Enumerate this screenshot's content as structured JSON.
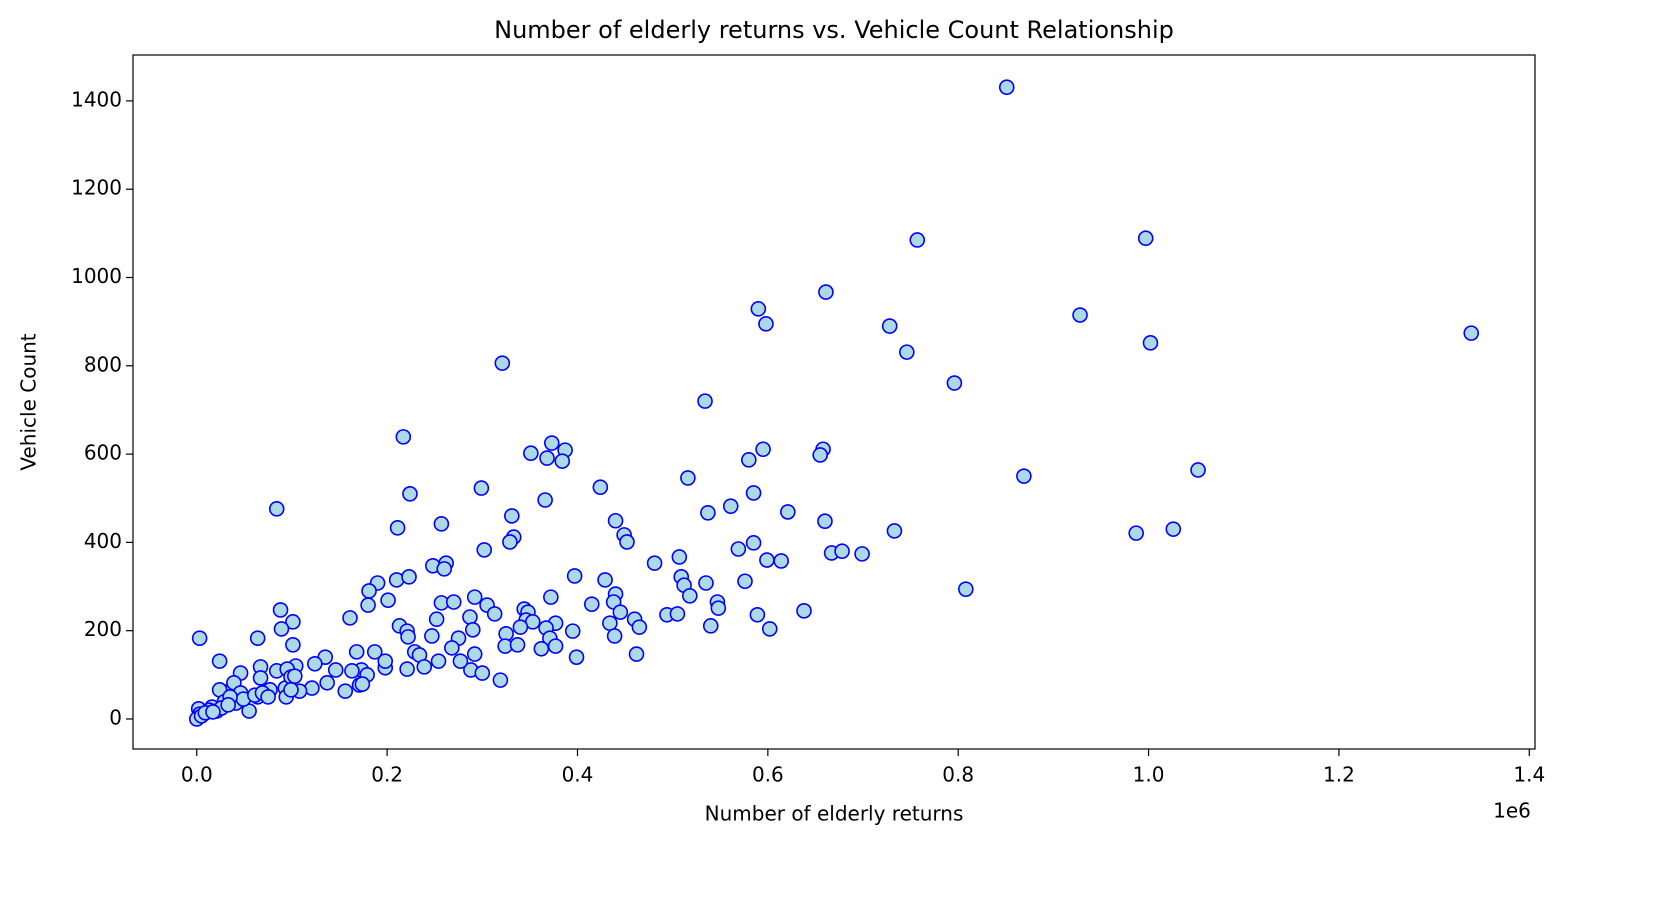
{
  "chart_data": {
    "type": "scatter",
    "title": "Number of elderly returns vs. Vehicle Count Relationship",
    "x_label": "Number of elderly returns",
    "y_label": "Vehicle Count",
    "x_offset_label": "1e6",
    "color": "#add8e6",
    "edge_color": "#0000ff",
    "xlim": [
      -67000,
      1406000
    ],
    "ylim": [
      -68,
      1504
    ],
    "xticks": [
      {
        "value": 0,
        "label": "0.0"
      },
      {
        "value": 200000,
        "label": "0.2"
      },
      {
        "value": 400000,
        "label": "0.4"
      },
      {
        "value": 600000,
        "label": "0.6"
      },
      {
        "value": 800000,
        "label": "0.8"
      },
      {
        "value": 1000000,
        "label": "1.0"
      },
      {
        "value": 1200000,
        "label": "1.2"
      },
      {
        "value": 1400000,
        "label": "1.4"
      }
    ],
    "yticks": [
      0,
      200,
      400,
      600,
      800,
      1000,
      1200,
      1400
    ],
    "x": [
      851000,
      757000,
      997000,
      661000,
      590000,
      598000,
      728000,
      928000,
      746000,
      1002000,
      1339000,
      796000,
      321000,
      534000,
      217000,
      373000,
      351000,
      368000,
      387000,
      384000,
      580000,
      595000,
      658000,
      655000,
      869000,
      1052000,
      224000,
      299000,
      424000,
      516000,
      84000,
      366000,
      561000,
      585000,
      537000,
      621000,
      211000,
      257000,
      331000,
      440000,
      660000,
      449000,
      452000,
      333000,
      329000,
      585000,
      569000,
      733000,
      987000,
      1026000,
      302000,
      667000,
      678000,
      699000,
      507000,
      599000,
      614000,
      481000,
      248000,
      262000,
      260000,
      509000,
      512000,
      397000,
      429000,
      535000,
      576000,
      190000,
      210000,
      223000,
      808000,
      518000,
      372000,
      292000,
      440000,
      181000,
      201000,
      257000,
      270000,
      305000,
      415000,
      438000,
      547000,
      548000,
      313000,
      344000,
      348000,
      88000,
      180000,
      445000,
      494000,
      505000,
      589000,
      638000,
      161000,
      252000,
      287000,
      346000,
      460000,
      377000,
      353000,
      340000,
      434000,
      465000,
      540000,
      602000,
      213000,
      101000,
      89000,
      221000,
      367000,
      395000,
      222000,
      247000,
      290000,
      325000,
      439000,
      3000,
      64000,
      275000,
      371000,
      101000,
      324000,
      337000,
      362000,
      377000,
      268000,
      229000,
      168000,
      187000,
      462000,
      399000,
      135000,
      234000,
      292000,
      288000,
      300000,
      239000,
      254000,
      277000,
      221000,
      198000,
      124000,
      319000,
      173000,
      146000,
      104000,
      24000,
      163000,
      179000,
      198000,
      84000,
      95000,
      121000,
      108000,
      156000,
      171000,
      174000,
      137000,
      67000,
      46000,
      64000,
      55000,
      38000,
      39000,
      93000,
      94000,
      99000,
      99000,
      103000,
      67000,
      77000,
      46000,
      24000,
      29000,
      41000,
      49000,
      61000,
      35000,
      16000,
      13000,
      21000,
      26000,
      2000,
      3000,
      1000,
      0,
      5000,
      9000,
      17000,
      33000,
      69000,
      75000
    ],
    "y": [
      1431,
      1085,
      1089,
      967,
      929,
      895,
      890,
      915,
      831,
      852,
      874,
      761,
      806,
      720,
      639,
      625,
      602,
      591,
      609,
      584,
      587,
      611,
      611,
      598,
      550,
      564,
      510,
      523,
      525,
      546,
      476,
      496,
      482,
      512,
      467,
      469,
      433,
      442,
      460,
      449,
      448,
      417,
      401,
      412,
      401,
      399,
      385,
      426,
      421,
      430,
      383,
      376,
      380,
      374,
      367,
      360,
      358,
      353,
      347,
      353,
      340,
      322,
      303,
      324,
      315,
      308,
      312,
      308,
      315,
      322,
      294,
      279,
      276,
      276,
      283,
      290,
      269,
      263,
      265,
      258,
      260,
      265,
      265,
      251,
      238,
      249,
      242,
      247,
      258,
      242,
      236,
      238,
      236,
      245,
      229,
      226,
      231,
      224,
      226,
      217,
      220,
      208,
      217,
      208,
      211,
      204,
      211,
      220,
      204,
      199,
      206,
      199,
      186,
      188,
      202,
      193,
      188,
      183,
      183,
      183,
      183,
      168,
      165,
      168,
      159,
      165,
      161,
      152,
      152,
      152,
      147,
      140,
      140,
      145,
      147,
      111,
      104,
      118,
      131,
      131,
      113,
      116,
      125,
      88,
      111,
      111,
      120,
      131,
      109,
      100,
      131,
      109,
      113,
      70,
      63,
      63,
      77,
      79,
      82,
      118,
      104,
      50,
      18,
      72,
      82,
      70,
      50,
      95,
      66,
      97,
      93,
      66,
      59,
      66,
      39,
      36,
      45,
      54,
      50,
      27,
      20,
      18,
      25,
      23,
      11,
      2,
      0,
      7,
      14,
      16,
      32,
      59,
      50
    ]
  }
}
